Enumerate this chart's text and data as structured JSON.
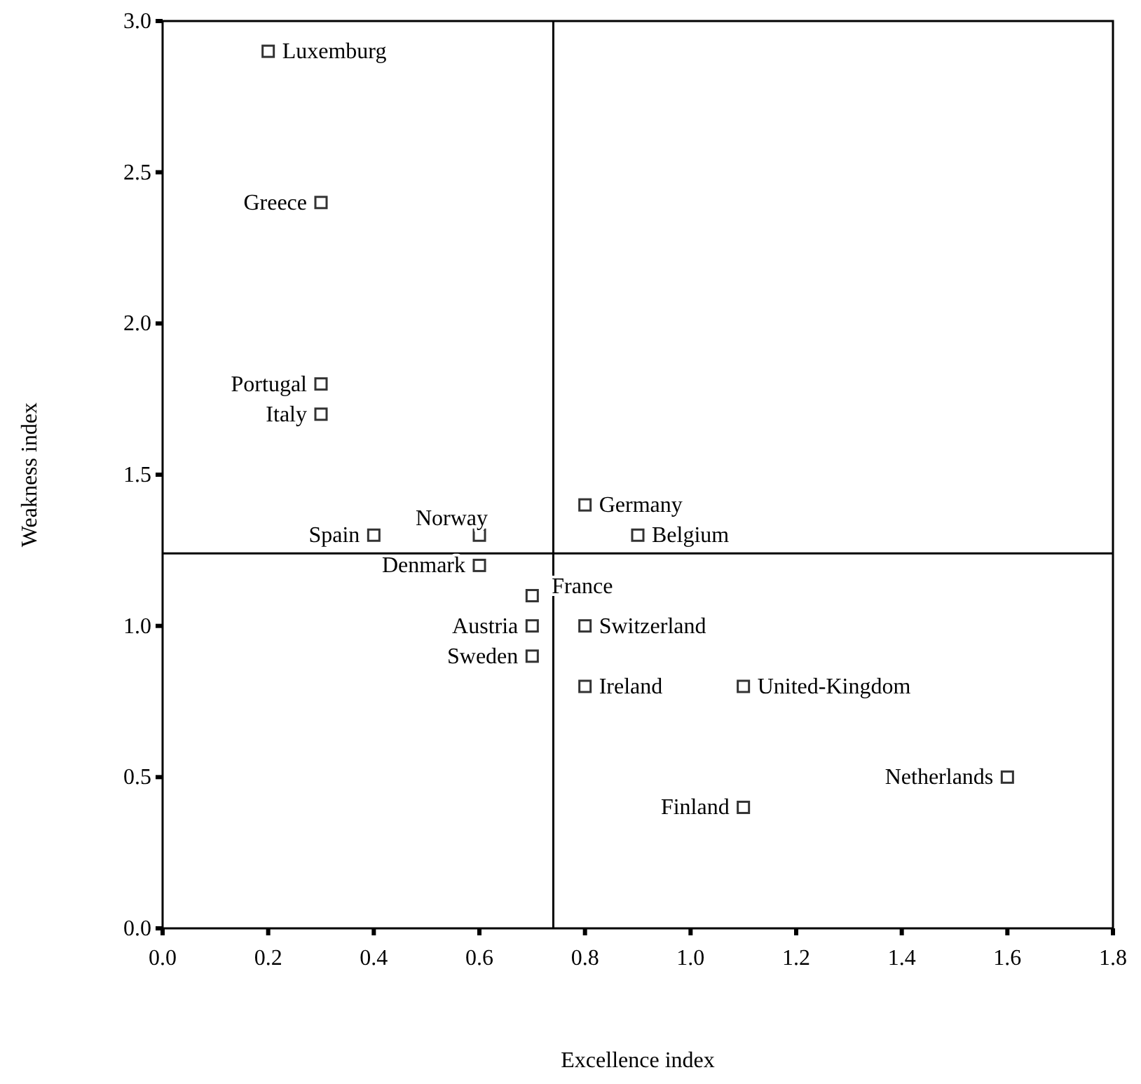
{
  "chart_data": {
    "type": "scatter",
    "xlabel": "Excellence index",
    "ylabel": "Weakness index",
    "marker": "square",
    "grid": false,
    "xlim": [
      0,
      1.8
    ],
    "ylim": [
      0,
      3.0
    ],
    "xticks": [
      {
        "value": 0,
        "label": "0.0"
      },
      {
        "value": 0.2,
        "label": "0.2"
      },
      {
        "value": 0.4,
        "label": "0.4"
      },
      {
        "value": 0.6,
        "label": "0.6"
      },
      {
        "value": 0.8,
        "label": "0.8"
      },
      {
        "value": 1.0,
        "label": "1.0"
      },
      {
        "value": 1.2,
        "label": "1.2"
      },
      {
        "value": 1.4,
        "label": "1.4"
      },
      {
        "value": 1.6,
        "label": "1.6"
      },
      {
        "value": 1.8,
        "label": "1.8"
      }
    ],
    "yticks": [
      {
        "value": 0,
        "label": "0.0"
      },
      {
        "value": 0.5,
        "label": "0.5"
      },
      {
        "value": 1.0,
        "label": "1.0"
      },
      {
        "value": 1.5,
        "label": "1.5"
      },
      {
        "value": 2.0,
        "label": "2.0"
      },
      {
        "value": 2.5,
        "label": "2.5"
      },
      {
        "value": 3.0,
        "label": "3.0"
      }
    ],
    "ref_lines": [
      {
        "axis": "x",
        "value": 0.74,
        "color": "#000000"
      },
      {
        "axis": "y",
        "value": 1.24,
        "color": "#000000"
      }
    ],
    "series": [
      {
        "name": "Luxemburg",
        "color": "#333333",
        "x": [
          0.2
        ],
        "values": [
          2.9
        ]
      },
      {
        "name": "Greece",
        "color": "#333333",
        "x": [
          0.3
        ],
        "values": [
          2.4
        ]
      },
      {
        "name": "Portugal",
        "color": "#333333",
        "x": [
          0.3
        ],
        "values": [
          1.8
        ]
      },
      {
        "name": "Italy",
        "color": "#333333",
        "x": [
          0.3
        ],
        "values": [
          1.7
        ]
      },
      {
        "name": "Spain",
        "color": "#333333",
        "x": [
          0.4
        ],
        "values": [
          1.3
        ]
      },
      {
        "name": "Norway",
        "color": "#333333",
        "x": [
          0.6
        ],
        "values": [
          1.3
        ]
      },
      {
        "name": "Denmark",
        "color": "#333333",
        "x": [
          0.6
        ],
        "values": [
          1.2
        ]
      },
      {
        "name": "France",
        "color": "#333333",
        "x": [
          0.7
        ],
        "values": [
          1.1
        ]
      },
      {
        "name": "Austria",
        "color": "#333333",
        "x": [
          0.7
        ],
        "values": [
          1.0
        ]
      },
      {
        "name": "Sweden",
        "color": "#333333",
        "x": [
          0.7
        ],
        "values": [
          0.9
        ]
      },
      {
        "name": "Germany",
        "color": "#333333",
        "x": [
          0.8
        ],
        "values": [
          1.4
        ]
      },
      {
        "name": "Belgium",
        "color": "#333333",
        "x": [
          0.9
        ],
        "values": [
          1.3
        ]
      },
      {
        "name": "Switzerland",
        "color": "#333333",
        "x": [
          0.8
        ],
        "values": [
          1.0
        ]
      },
      {
        "name": "Ireland",
        "color": "#333333",
        "x": [
          0.8
        ],
        "values": [
          0.8
        ]
      },
      {
        "name": "United-Kingdom",
        "color": "#333333",
        "x": [
          1.1
        ],
        "values": [
          0.8
        ]
      },
      {
        "name": "Finland",
        "color": "#333333",
        "x": [
          1.1
        ],
        "values": [
          0.4
        ]
      },
      {
        "name": "Netherlands",
        "color": "#333333",
        "x": [
          1.6
        ],
        "values": [
          0.5
        ]
      }
    ]
  }
}
